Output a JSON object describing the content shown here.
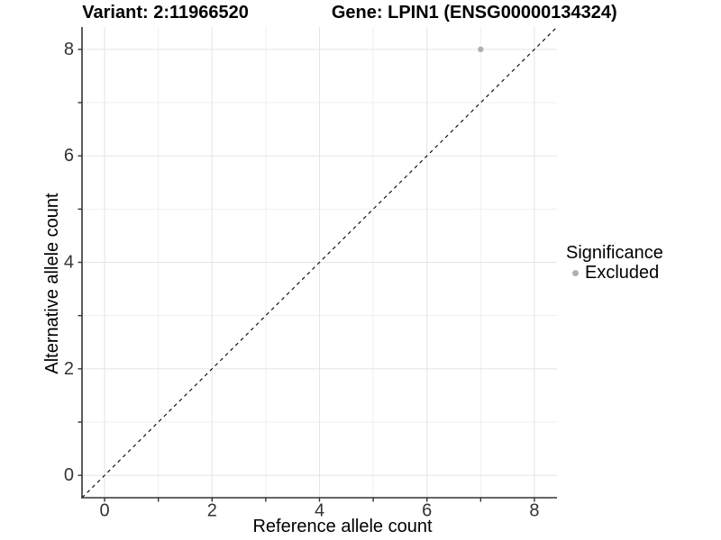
{
  "chart_data": {
    "type": "scatter",
    "titles": {
      "left": "Variant: 2:11966520",
      "right": "Gene: LPIN1 (ENSG00000134324)"
    },
    "xlabel": "Reference allele count",
    "ylabel": "Alternative allele count",
    "xlim": [
      -0.42,
      8.42
    ],
    "ylim": [
      -0.42,
      8.42
    ],
    "major_ticks": [
      0,
      2,
      4,
      6,
      8
    ],
    "minor_ticks": [
      1,
      3,
      5,
      7
    ],
    "grid": "major+minor",
    "reference_line": {
      "type": "identity",
      "slope": 1,
      "intercept": 0,
      "style": "dashed",
      "color": "#000000"
    },
    "series": [
      {
        "name": "Excluded",
        "color": "#b0b0b0",
        "points": [
          [
            7,
            8
          ]
        ]
      }
    ],
    "legend": {
      "title": "Significance",
      "position": "right",
      "entries": [
        {
          "label": "Excluded",
          "color": "#b0b0b0",
          "marker": "circle"
        }
      ]
    }
  },
  "colors": {
    "background": "#ffffff",
    "axis": "#333333",
    "tick_text": "#333333",
    "grid_major": "#e4e4e4",
    "grid_minor": "#efefef",
    "title_text": "#000000"
  }
}
